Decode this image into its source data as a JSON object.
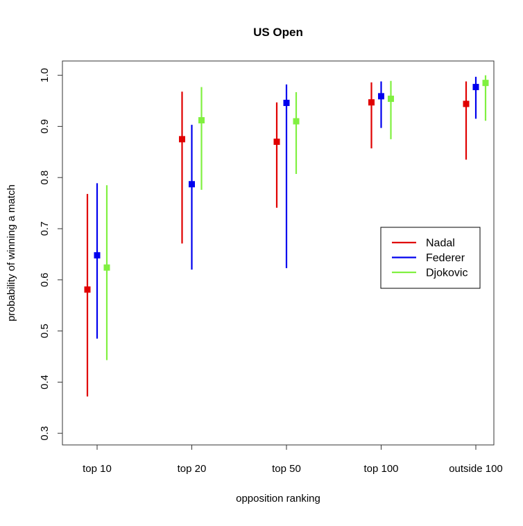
{
  "chart_data": {
    "type": "errorbar",
    "title": "US Open",
    "xlabel": "opposition ranking",
    "ylabel": "probability of winning a match",
    "categories": [
      "top 10",
      "top 20",
      "top 50",
      "top 100",
      "outside 100"
    ],
    "ylim": [
      0.3,
      1.0
    ],
    "yticks": [
      "0.3",
      "0.4",
      "0.5",
      "0.6",
      "0.7",
      "0.8",
      "0.9",
      "1.0"
    ],
    "grid": false,
    "legend_position": "right-middle",
    "series": [
      {
        "name": "Nadal",
        "color": "#e00000",
        "values": [
          0.581,
          0.875,
          0.87,
          0.947,
          0.944
        ],
        "lower": [
          0.372,
          0.671,
          0.741,
          0.857,
          0.835
        ],
        "upper": [
          0.768,
          0.968,
          0.947,
          0.986,
          0.988
        ]
      },
      {
        "name": "Federer",
        "color": "#0000ee",
        "values": [
          0.648,
          0.787,
          0.946,
          0.959,
          0.977
        ],
        "lower": [
          0.485,
          0.62,
          0.623,
          0.897,
          0.915
        ],
        "upper": [
          0.789,
          0.903,
          0.982,
          0.988,
          0.997
        ]
      },
      {
        "name": "Djokovic",
        "color": "#80f040",
        "values": [
          0.624,
          0.912,
          0.91,
          0.954,
          0.985
        ],
        "lower": [
          0.443,
          0.776,
          0.807,
          0.875,
          0.911
        ],
        "upper": [
          0.785,
          0.977,
          0.967,
          0.989,
          1.0
        ]
      }
    ]
  }
}
